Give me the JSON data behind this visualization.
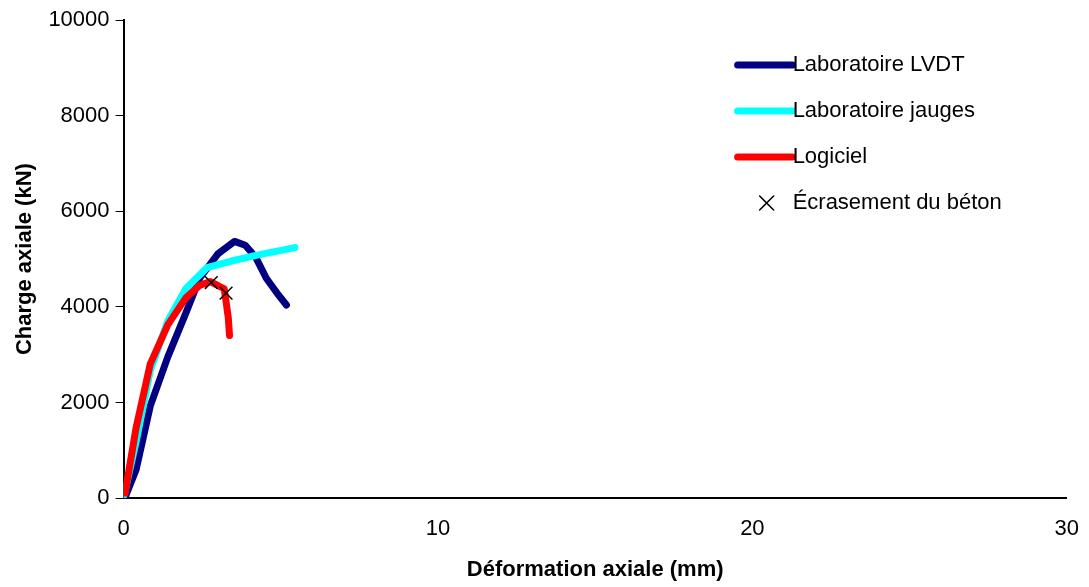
{
  "chart_data": {
    "type": "line",
    "xlabel": "Déformation axiale (mm)",
    "ylabel": "Charge axiale (kN)",
    "xlim": [
      0,
      30
    ],
    "xticks": [
      0,
      10,
      20,
      30
    ],
    "ylim": [
      0,
      10000
    ],
    "yticks": [
      0,
      2000,
      4000,
      6000,
      8000,
      10000
    ],
    "grid": false,
    "legend": "top right",
    "marker": "none",
    "line_style": "solid",
    "series": [
      {
        "name": "Laboratoire LVDT",
        "color": "#000080",
        "x": [
          0.07,
          0.4,
          0.85,
          1.41,
          1.98,
          2.42,
          3.0,
          3.53,
          3.87,
          4.2,
          4.54,
          4.88,
          5.18
        ],
        "values": [
          50,
          600,
          1930,
          2960,
          3870,
          4600,
          5110,
          5370,
          5290,
          5040,
          4600,
          4290,
          4040
        ]
      },
      {
        "name": "Laboratoire jauges",
        "color": "#00ffff",
        "x": [
          0.02,
          0.4,
          0.85,
          1.41,
          1.98,
          2.65,
          3.43,
          4.44,
          5.45
        ],
        "values": [
          70,
          1180,
          2670,
          3710,
          4380,
          4820,
          4960,
          5110,
          5240
        ]
      },
      {
        "name": "Logiciel",
        "color": "#ff0000",
        "x": [
          0.05,
          0.4,
          0.85,
          1.41,
          1.98,
          2.42,
          2.76,
          3.2,
          3.26,
          3.33,
          3.37
        ],
        "values": [
          110,
          1480,
          2810,
          3630,
          4190,
          4450,
          4530,
          4380,
          4110,
          3780,
          3400
        ]
      },
      {
        "name": "Écrasement du béton",
        "type": "scatter",
        "marker": "cross",
        "color": "#000000",
        "x": [
          2.79,
          3.26
        ],
        "values": [
          4510,
          4290
        ]
      }
    ]
  }
}
